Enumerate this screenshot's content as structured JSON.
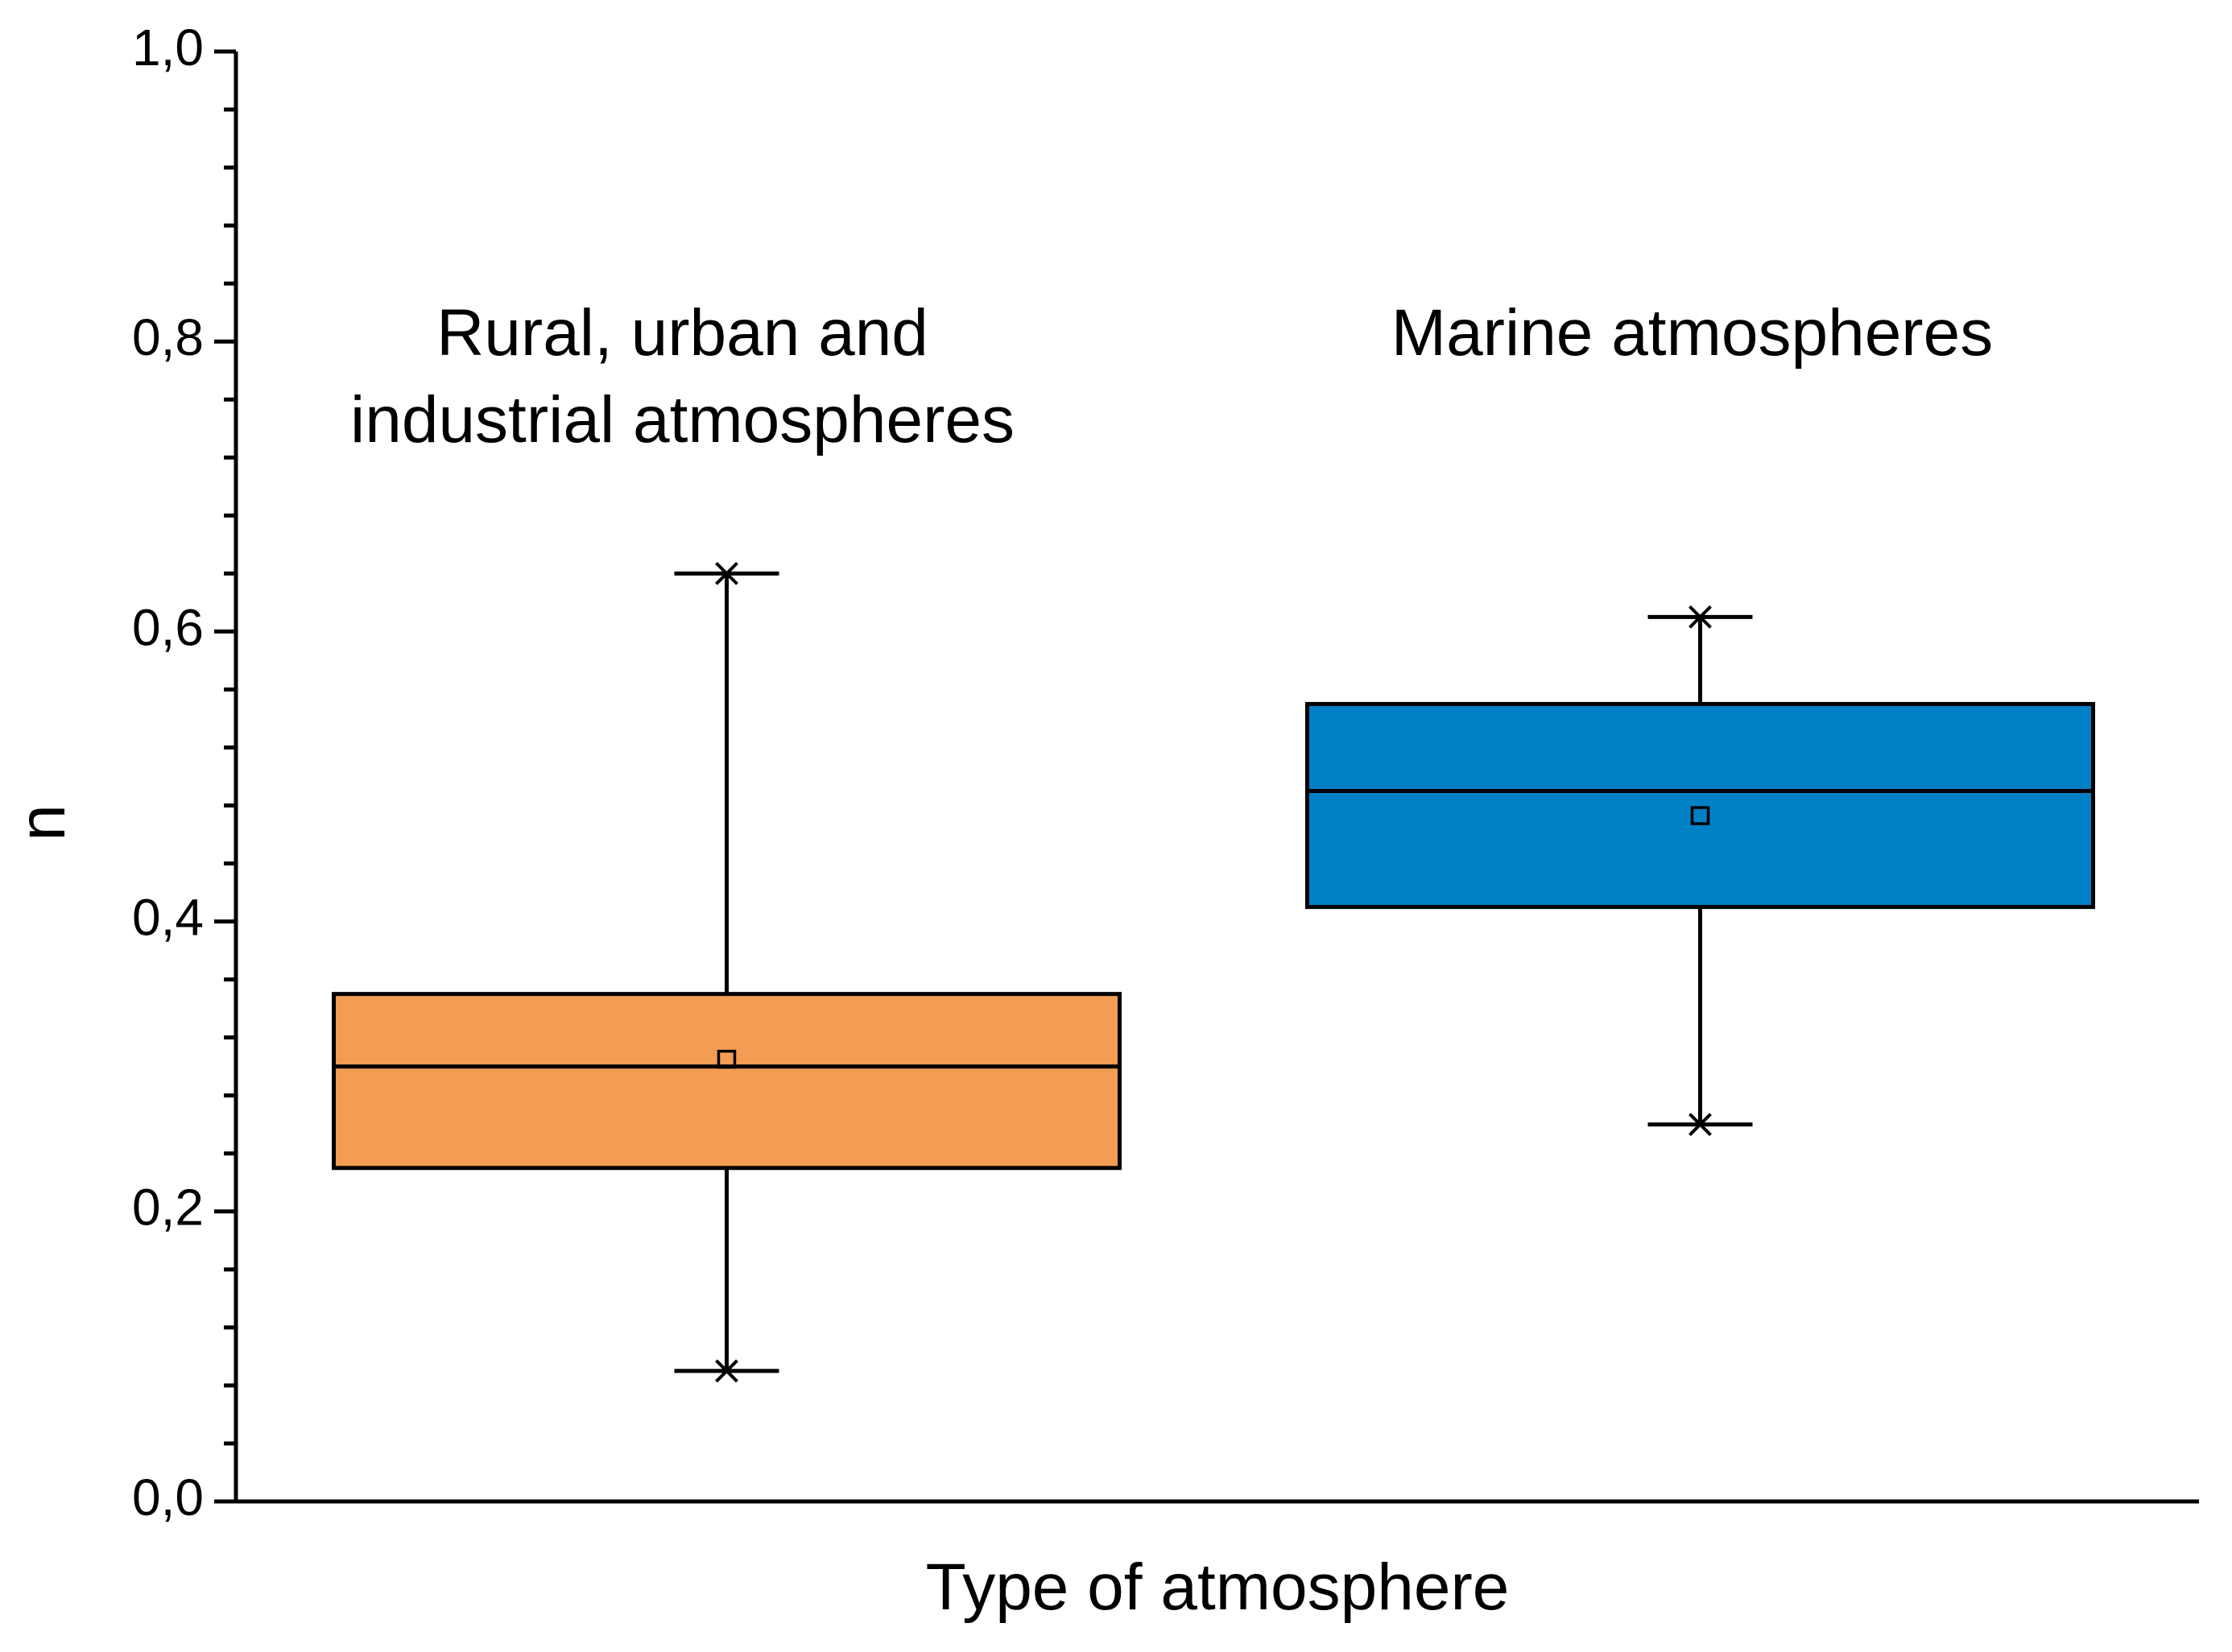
{
  "chart_data": {
    "type": "box",
    "x_label": "Type of atmosphere",
    "y_label": "n",
    "categories": [
      [
        "Rural, urban and",
        "industrial atmospheres"
      ],
      [
        "Marine atmospheres"
      ]
    ],
    "boxes": [
      {
        "color": "#f39c54",
        "min": 0.09,
        "q1": 0.23,
        "median": 0.3,
        "q3": 0.35,
        "max": 0.64,
        "mean": 0.305
      },
      {
        "color": "#0080c6",
        "min": 0.26,
        "q1": 0.41,
        "median": 0.49,
        "q3": 0.55,
        "max": 0.61,
        "mean": 0.473
      }
    ],
    "ylim": [
      0,
      1
    ],
    "yticks": [
      {
        "value": 0,
        "label": "0,0"
      },
      {
        "value": 0.2,
        "label": "0,2"
      },
      {
        "value": 0.4,
        "label": "0,4"
      },
      {
        "value": 0.6,
        "label": "0,6"
      },
      {
        "value": 0.8,
        "label": "0,8"
      },
      {
        "value": 1,
        "label": "1,0"
      }
    ],
    "y_minor_ticks": 4,
    "grid": false
  }
}
